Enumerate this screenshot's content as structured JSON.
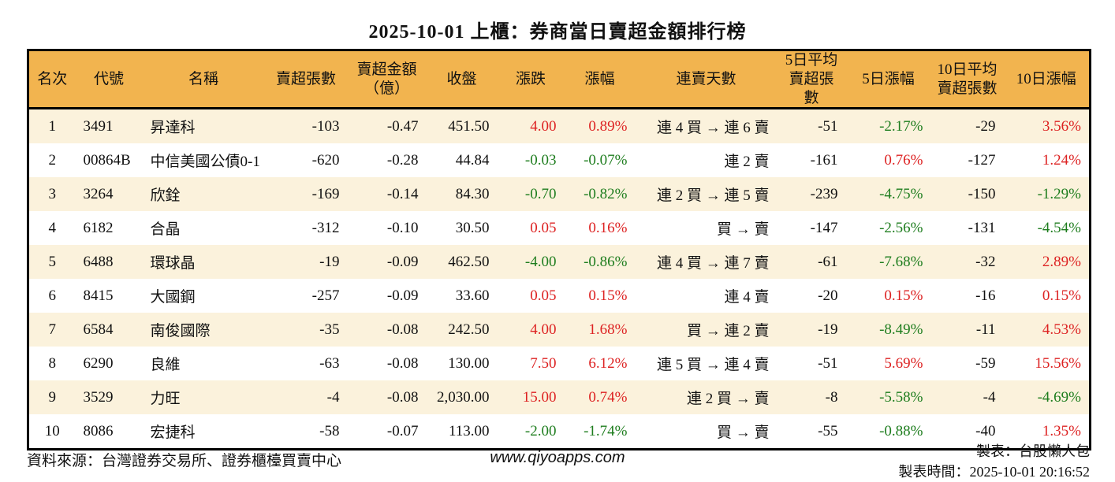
{
  "title": "2025-10-01 上櫃：券商當日賣超金額排行榜",
  "colors": {
    "up_red": "#dd2222",
    "down_green": "#1e7d1e",
    "header_bg": "#f2b44f",
    "row_alt_bg": "#fbf2dc",
    "border": "#000000"
  },
  "table": {
    "columns": [
      {
        "key": "rank",
        "label": "名次",
        "align": "ac",
        "cls": "c-rank",
        "signcolor": false
      },
      {
        "key": "code",
        "label": "代號",
        "align": "al",
        "cls": "c-code",
        "signcolor": false
      },
      {
        "key": "name",
        "label": "名稱",
        "align": "al",
        "cls": "c-name",
        "signcolor": false
      },
      {
        "key": "sell_volume",
        "label": "賣超張數",
        "align": "ar",
        "cls": "c-vol",
        "signcolor": false
      },
      {
        "key": "sell_amount",
        "label": "賣超金額\n（億）",
        "align": "ar",
        "cls": "c-amt",
        "signcolor": false
      },
      {
        "key": "close",
        "label": "收盤",
        "align": "ar",
        "cls": "c-close",
        "signcolor": false
      },
      {
        "key": "change",
        "label": "漲跌",
        "align": "ar",
        "cls": "c-chg",
        "signcolor": true
      },
      {
        "key": "change_pct",
        "label": "漲幅",
        "align": "ar",
        "cls": "c-chgp",
        "signcolor": true
      },
      {
        "key": "streak",
        "label": "連賣天數",
        "align": "ar",
        "cls": "c-streak",
        "signcolor": false
      },
      {
        "key": "avg5",
        "label": "5日平均\n賣超張數",
        "align": "ar",
        "cls": "c-avg5",
        "signcolor": false
      },
      {
        "key": "pct5",
        "label": "5日漲幅",
        "align": "ar",
        "cls": "c-pct5",
        "signcolor": true
      },
      {
        "key": "avg10",
        "label": "10日平均\n賣超張數",
        "align": "ar",
        "cls": "c-avg10",
        "signcolor": false
      },
      {
        "key": "pct10",
        "label": "10日漲幅",
        "align": "ar",
        "cls": "c-pct10",
        "signcolor": true
      }
    ],
    "rows": [
      {
        "rank": "1",
        "code": "3491",
        "name": "昇達科",
        "sell_volume": "-103",
        "sell_amount": "-0.47",
        "close": "451.50",
        "change": "4.00",
        "change_pct": "0.89%",
        "streak": "連 4 買 → 連 6 賣",
        "avg5": "-51",
        "pct5": "-2.17%",
        "avg10": "-29",
        "pct10": "3.56%"
      },
      {
        "rank": "2",
        "code": "00864B",
        "name": "中信美國公債0-1",
        "sell_volume": "-620",
        "sell_amount": "-0.28",
        "close": "44.84",
        "change": "-0.03",
        "change_pct": "-0.07%",
        "streak": "連 2 賣",
        "avg5": "-161",
        "pct5": "0.76%",
        "avg10": "-127",
        "pct10": "1.24%"
      },
      {
        "rank": "3",
        "code": "3264",
        "name": "欣銓",
        "sell_volume": "-169",
        "sell_amount": "-0.14",
        "close": "84.30",
        "change": "-0.70",
        "change_pct": "-0.82%",
        "streak": "連 2 買 → 連 5 賣",
        "avg5": "-239",
        "pct5": "-4.75%",
        "avg10": "-150",
        "pct10": "-1.29%"
      },
      {
        "rank": "4",
        "code": "6182",
        "name": "合晶",
        "sell_volume": "-312",
        "sell_amount": "-0.10",
        "close": "30.50",
        "change": "0.05",
        "change_pct": "0.16%",
        "streak": "買 → 賣",
        "avg5": "-147",
        "pct5": "-2.56%",
        "avg10": "-131",
        "pct10": "-4.54%"
      },
      {
        "rank": "5",
        "code": "6488",
        "name": "環球晶",
        "sell_volume": "-19",
        "sell_amount": "-0.09",
        "close": "462.50",
        "change": "-4.00",
        "change_pct": "-0.86%",
        "streak": "連 4 買 → 連 7 賣",
        "avg5": "-61",
        "pct5": "-7.68%",
        "avg10": "-32",
        "pct10": "2.89%"
      },
      {
        "rank": "6",
        "code": "8415",
        "name": "大國鋼",
        "sell_volume": "-257",
        "sell_amount": "-0.09",
        "close": "33.60",
        "change": "0.05",
        "change_pct": "0.15%",
        "streak": "連 4 賣",
        "avg5": "-20",
        "pct5": "0.15%",
        "avg10": "-16",
        "pct10": "0.15%"
      },
      {
        "rank": "7",
        "code": "6584",
        "name": "南俊國際",
        "sell_volume": "-35",
        "sell_amount": "-0.08",
        "close": "242.50",
        "change": "4.00",
        "change_pct": "1.68%",
        "streak": "買 → 連 2 賣",
        "avg5": "-19",
        "pct5": "-8.49%",
        "avg10": "-11",
        "pct10": "4.53%"
      },
      {
        "rank": "8",
        "code": "6290",
        "name": "良維",
        "sell_volume": "-63",
        "sell_amount": "-0.08",
        "close": "130.00",
        "change": "7.50",
        "change_pct": "6.12%",
        "streak": "連 5 買 → 連 4 賣",
        "avg5": "-51",
        "pct5": "5.69%",
        "avg10": "-59",
        "pct10": "15.56%"
      },
      {
        "rank": "9",
        "code": "3529",
        "name": "力旺",
        "sell_volume": "-4",
        "sell_amount": "-0.08",
        "close": "2,030.00",
        "change": "15.00",
        "change_pct": "0.74%",
        "streak": "連 2 買 → 賣",
        "avg5": "-8",
        "pct5": "-5.58%",
        "avg10": "-4",
        "pct10": "-4.69%"
      },
      {
        "rank": "10",
        "code": "8086",
        "name": "宏捷科",
        "sell_volume": "-58",
        "sell_amount": "-0.07",
        "close": "113.00",
        "change": "-2.00",
        "change_pct": "-1.74%",
        "streak": "買 → 賣",
        "avg5": "-55",
        "pct5": "-0.88%",
        "avg10": "-40",
        "pct10": "1.35%"
      }
    ]
  },
  "footer": {
    "source": "資料來源：台灣證券交易所、證券櫃檯買賣中心",
    "website": "www.qiyoapps.com",
    "author": "製表：台股懶人包",
    "generated": "製表時間：2025-10-01 20:16:52"
  }
}
